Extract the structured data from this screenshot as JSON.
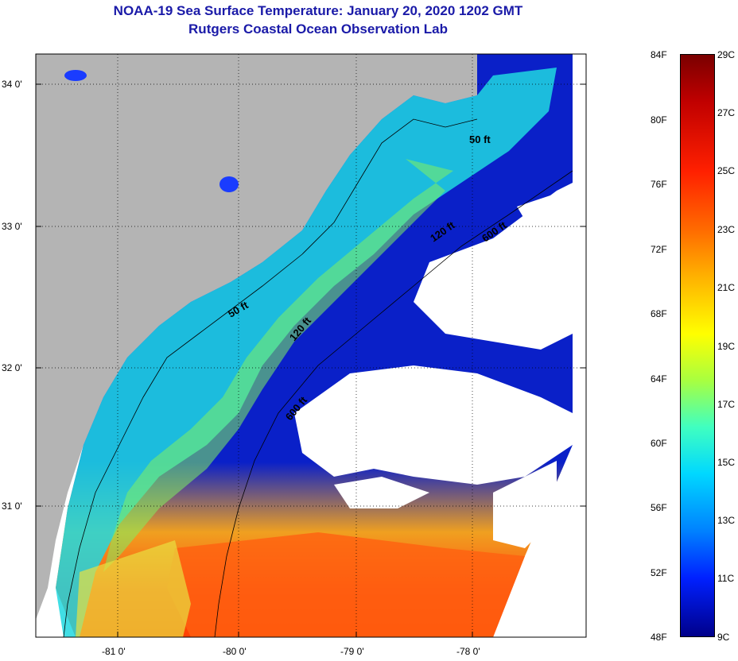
{
  "title": "NOAA-19 Sea Surface Temperature:  January 20, 2020 1202 GMT",
  "subtitle": "Rutgers Coastal Ocean Observation Lab",
  "lat_labels": [
    "34 0'",
    "33 0'",
    "32 0'",
    "31 0'"
  ],
  "lon_labels": [
    "-81 0'",
    "-80 0'",
    "-79 0'",
    "-78 0'"
  ],
  "isobaths": [
    "50 ft",
    "120 ft",
    "600 ft",
    "50 ft",
    "120 ft",
    "600 ft"
  ],
  "colorbar": {
    "fahrenheit": [
      "84F",
      "80F",
      "76F",
      "72F",
      "68F",
      "64F",
      "60F",
      "56F",
      "52F",
      "48F"
    ],
    "celsius": [
      "29C",
      "27C",
      "25C",
      "23C",
      "21C",
      "19C",
      "17C",
      "15C",
      "13C",
      "11C",
      "9C"
    ]
  },
  "colors": {
    "land": "#b4b4b4",
    "cloud": "#ffffff",
    "title": "#1a1aa8"
  }
}
